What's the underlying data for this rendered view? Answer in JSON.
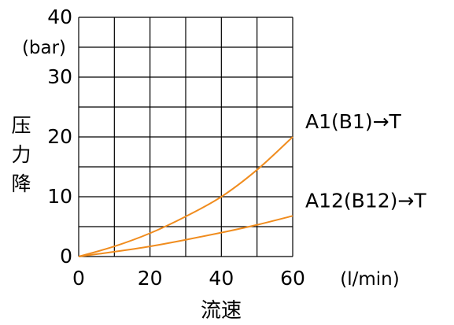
{
  "chart_data": {
    "type": "line",
    "xlabel": "流速",
    "x_unit": "(l/min)",
    "ylabel": "压力降",
    "y_unit": "(bar)",
    "xlim": [
      0,
      60
    ],
    "ylim": [
      0,
      40
    ],
    "x_ticks": [
      "0",
      "20",
      "40",
      "60"
    ],
    "y_ticks": [
      "0",
      "10",
      "20",
      "30",
      "40"
    ],
    "grid": true,
    "line_color": "#f08c1e",
    "series": [
      {
        "name": "A1(B1)→T",
        "x": [
          0,
          10,
          20,
          30,
          40,
          50,
          60
        ],
        "y": [
          0,
          1.7,
          3.9,
          6.7,
          10.0,
          14.5,
          20.0
        ]
      },
      {
        "name": "A12(B12)→T",
        "x": [
          0,
          10,
          20,
          30,
          40,
          50,
          60
        ],
        "y": [
          0,
          0.8,
          1.7,
          2.8,
          4.0,
          5.3,
          6.8
        ]
      }
    ]
  }
}
